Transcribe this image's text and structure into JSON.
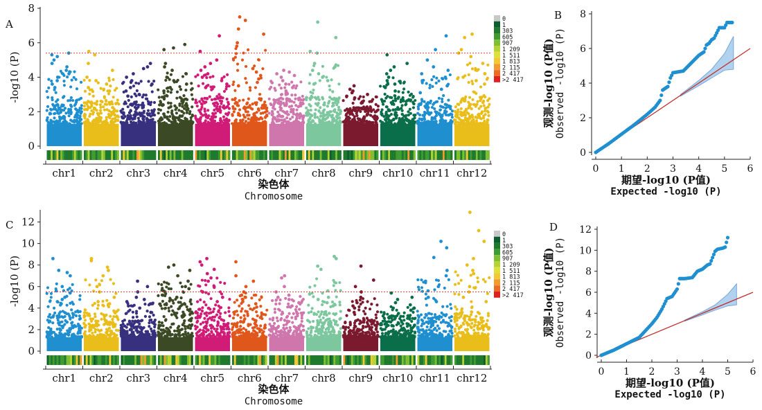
{
  "colors": {
    "chromosomes": [
      "#1f8fd0",
      "#e9bd1a",
      "#36307f",
      "#3b4a25",
      "#d01c77",
      "#e0571c",
      "#cf77ad",
      "#7cc79e",
      "#7b1a2f",
      "#0b6e4a",
      "#1f8fd0",
      "#e9bd1a"
    ],
    "threshold_line": "#e0403a",
    "qq_points": "#1f8fd0",
    "qq_expected_line": "#c0302b",
    "qq_band_fill": "#9ec7ea",
    "density_legend": [
      "#c8c8c8",
      "#0d5e2e",
      "#1f7a2e",
      "#3f9b32",
      "#7fbf33",
      "#b5d334",
      "#dfe03a",
      "#f2c935",
      "#f39a2e",
      "#ee6a27",
      "#e63524",
      "#e01f1f"
    ]
  },
  "panels": [
    {
      "letter": "A"
    },
    {
      "letter": "B"
    },
    {
      "letter": "C"
    },
    {
      "letter": "D"
    }
  ],
  "axis_text": {
    "manhattan_y_label": "-log10 (P)",
    "manhattan_x_label_cn": "染色体",
    "manhattan_x_label_en": "Chromosome",
    "qq_y_label_cn": "观测-log10 (P值)",
    "qq_y_label_en": "Observed -log10 (P)",
    "qq_x_label_cn": "期望-log10 (P值)",
    "qq_x_label_en": "Expected -log10 (P)"
  },
  "density_legend_labels": [
    "0",
    "1",
    "303",
    "605",
    "907",
    "1 209",
    "1 511",
    "1 813",
    "2 115",
    "2 417",
    ">2 417"
  ],
  "chart_data": [
    {
      "panel": "A",
      "type": "scatter",
      "subtype": "manhattan",
      "categories": [
        "chr1",
        "chr2",
        "chr3",
        "chr4",
        "chr5",
        "chr6",
        "chr7",
        "chr8",
        "chr9",
        "chr10",
        "chr11",
        "chr12"
      ],
      "xlabel": "染色体 Chromosome",
      "ylabel": "-log10 (P)",
      "ylim": [
        0,
        8
      ],
      "yticks": [
        0,
        2,
        4,
        6,
        8
      ],
      "threshold": 5.4,
      "dense_band_top": [
        2.6,
        2.4,
        2.3,
        2.7,
        2.6,
        2.5,
        2.5,
        2.6,
        2.0,
        2.6,
        2.3,
        2.6
      ],
      "top_points": [
        [
          5.4,
          5.2,
          5.0,
          4.8,
          4.6,
          4.4,
          4.2,
          5.3,
          4.0,
          3.8,
          3.6,
          3.4
        ],
        [
          5.5,
          5.3,
          4.8,
          4.4,
          4.0,
          3.8,
          3.6,
          3.4,
          3.3,
          3.2
        ],
        [
          4.8,
          4.6,
          4.5,
          4.2,
          4.0,
          3.8,
          3.6,
          3.4,
          3.2,
          3.0,
          2.9
        ],
        [
          5.9,
          5.7,
          5.6,
          4.8,
          4.6,
          4.4,
          4.2,
          4.0,
          3.8,
          3.6,
          3.4,
          3.2
        ],
        [
          6.4,
          5.5,
          5.0,
          4.8,
          4.6,
          4.4,
          4.2,
          4.0,
          3.8,
          3.6,
          3.4
        ],
        [
          7.5,
          7.3,
          6.8,
          6.5,
          6.0,
          5.8,
          4.5,
          4.3,
          4.1,
          3.9,
          3.7,
          3.5
        ],
        [
          4.4,
          4.3,
          4.2,
          4.1,
          4.0,
          3.8,
          3.6,
          3.4,
          3.2,
          3.0
        ],
        [
          7.2,
          6.3,
          5.5,
          5.4,
          4.8,
          4.6,
          4.4,
          4.2,
          4.0,
          3.8,
          3.6
        ],
        [
          3.5,
          3.3,
          3.2,
          3.1,
          3.0,
          2.9,
          2.8,
          2.6,
          2.5
        ],
        [
          5.3,
          4.8,
          4.6,
          4.4,
          4.2,
          4.0,
          3.8,
          3.6,
          3.4,
          3.2
        ],
        [
          6.4,
          5.6,
          5.0,
          4.6,
          4.4,
          4.2,
          4.0,
          3.8,
          3.5,
          3.3,
          3.1
        ],
        [
          6.5,
          6.3,
          5.6,
          5.4,
          5.2,
          4.8,
          4.4,
          4.2,
          4.0,
          3.8,
          3.6
        ]
      ]
    },
    {
      "panel": "B",
      "type": "scatter",
      "subtype": "qq",
      "xlabel": "期望-log10 (P值) Expected -log10 (P)",
      "ylabel": "观测-log10 (P值) Observed -log10 (P)",
      "xlim": [
        0,
        6
      ],
      "ylim": [
        0,
        8
      ],
      "xticks": [
        0,
        1,
        2,
        3,
        4,
        5,
        6
      ],
      "yticks": [
        0,
        2,
        4,
        6,
        8
      ],
      "x": [
        0,
        0.5,
        1.0,
        1.5,
        2.0,
        2.3,
        2.5,
        2.6,
        2.8,
        2.9,
        3.0,
        3.2,
        3.4,
        3.6,
        3.8,
        4.0,
        4.2,
        4.3,
        4.4,
        4.5,
        4.6,
        4.8,
        5.0,
        5.1,
        5.3
      ],
      "y": [
        0,
        0.5,
        1.05,
        1.6,
        2.2,
        2.6,
        3.0,
        3.6,
        3.8,
        4.3,
        4.6,
        4.65,
        4.7,
        5.0,
        5.3,
        5.6,
        5.8,
        6.2,
        6.3,
        6.5,
        6.6,
        7.2,
        7.2,
        7.5,
        7.5
      ],
      "expected_line": {
        "x": [
          0,
          6
        ],
        "y": [
          0,
          6
        ]
      },
      "confidence_band": {
        "x": [
          3.3,
          4.0,
          4.5,
          5.0,
          5.35
        ],
        "upper": [
          3.35,
          4.15,
          4.8,
          5.7,
          6.7
        ],
        "lower": [
          3.25,
          3.85,
          4.3,
          4.75,
          4.8
        ]
      }
    },
    {
      "panel": "C",
      "type": "scatter",
      "subtype": "manhattan",
      "categories": [
        "chr1",
        "chr2",
        "chr3",
        "chr4",
        "chr5",
        "chr6",
        "chr7",
        "chr8",
        "chr9",
        "chr10",
        "chr11",
        "chr12"
      ],
      "xlabel": "染色体 Chromosome",
      "ylabel": "-log10 (P)",
      "ylim": [
        0,
        13
      ],
      "yticks": [
        0,
        2,
        4,
        6,
        8,
        10,
        12
      ],
      "threshold": 5.5,
      "dense_band_top": [
        3.5,
        3.3,
        2.6,
        4.4,
        3.8,
        3.4,
        3.4,
        3.4,
        2.6,
        3.0,
        3.3,
        3.4
      ],
      "top_points": [
        [
          8.6,
          7.5,
          7.3,
          7.0,
          6.0,
          5.6,
          5.4,
          5.0,
          4.8,
          4.6,
          4.4
        ],
        [
          8.6,
          8.4,
          7.8,
          7.5,
          7.0,
          6.0,
          5.5,
          5.0,
          4.6,
          4.4
        ],
        [
          6.5,
          6.0,
          5.5,
          5.0,
          4.8,
          4.6,
          4.4,
          4.2,
          4.0,
          3.6
        ],
        [
          8.0,
          7.8,
          7.5,
          7.0,
          6.5,
          6.0,
          5.8,
          5.5,
          5.2,
          5.0,
          4.8
        ],
        [
          8.6,
          8.3,
          8.0,
          7.6,
          7.2,
          6.8,
          6.5,
          6.0,
          5.5,
          5.0,
          4.6
        ],
        [
          8.3,
          7.0,
          6.5,
          6.0,
          5.5,
          5.2,
          5.0,
          4.8,
          4.6,
          4.4
        ],
        [
          7.0,
          6.8,
          6.0,
          5.5,
          5.2,
          5.0,
          4.8,
          4.5,
          4.2
        ],
        [
          8.8,
          8.6,
          7.9,
          7.6,
          5.6,
          5.3,
          5.0,
          4.8,
          4.5,
          4.2
        ],
        [
          7.9,
          6.6,
          6.0,
          5.5,
          5.0,
          4.5,
          4.2,
          4.0,
          3.6
        ],
        [
          5.4,
          5.0,
          4.8,
          4.5,
          4.3,
          4.0,
          3.8,
          3.5
        ],
        [
          10.2,
          9.6,
          8.7,
          7.5,
          7.0,
          6.5,
          6.0,
          5.6,
          5.0,
          4.6
        ],
        [
          12.9,
          11.2,
          10.2,
          8.6,
          8.0,
          7.5,
          7.2,
          6.0,
          5.5,
          5.0,
          4.6
        ]
      ]
    },
    {
      "panel": "D",
      "type": "scatter",
      "subtype": "qq",
      "xlabel": "期望-log10 (P值) Expected -log10 (P)",
      "ylabel": "观测-log10 (P值) Observed -log10 (P)",
      "xlim": [
        0,
        6
      ],
      "ylim": [
        0,
        12
      ],
      "xticks": [
        0,
        1,
        2,
        3,
        4,
        5,
        6
      ],
      "yticks": [
        0,
        2,
        4,
        6,
        8,
        10,
        12
      ],
      "x": [
        0,
        0.5,
        1.0,
        1.5,
        2.0,
        2.2,
        2.4,
        2.6,
        2.8,
        3.0,
        3.1,
        3.3,
        3.6,
        3.8,
        4.0,
        4.2,
        4.3,
        4.5,
        4.6,
        4.8,
        4.9,
        5.0
      ],
      "y": [
        0,
        0.5,
        1.1,
        1.7,
        3.0,
        3.6,
        4.4,
        5.4,
        5.6,
        6.3,
        7.3,
        7.3,
        7.4,
        8.0,
        8.2,
        8.6,
        8.7,
        9.9,
        10.1,
        10.2,
        10.3,
        11.2
      ],
      "expected_line": {
        "x": [
          -0.2,
          6
        ],
        "y": [
          -0.2,
          6
        ]
      },
      "confidence_band": {
        "x": [
          3.3,
          4.0,
          4.5,
          5.0,
          5.35
        ],
        "upper": [
          3.35,
          4.15,
          4.8,
          5.8,
          6.8
        ],
        "lower": [
          3.25,
          3.85,
          4.3,
          4.7,
          4.8
        ]
      }
    }
  ]
}
